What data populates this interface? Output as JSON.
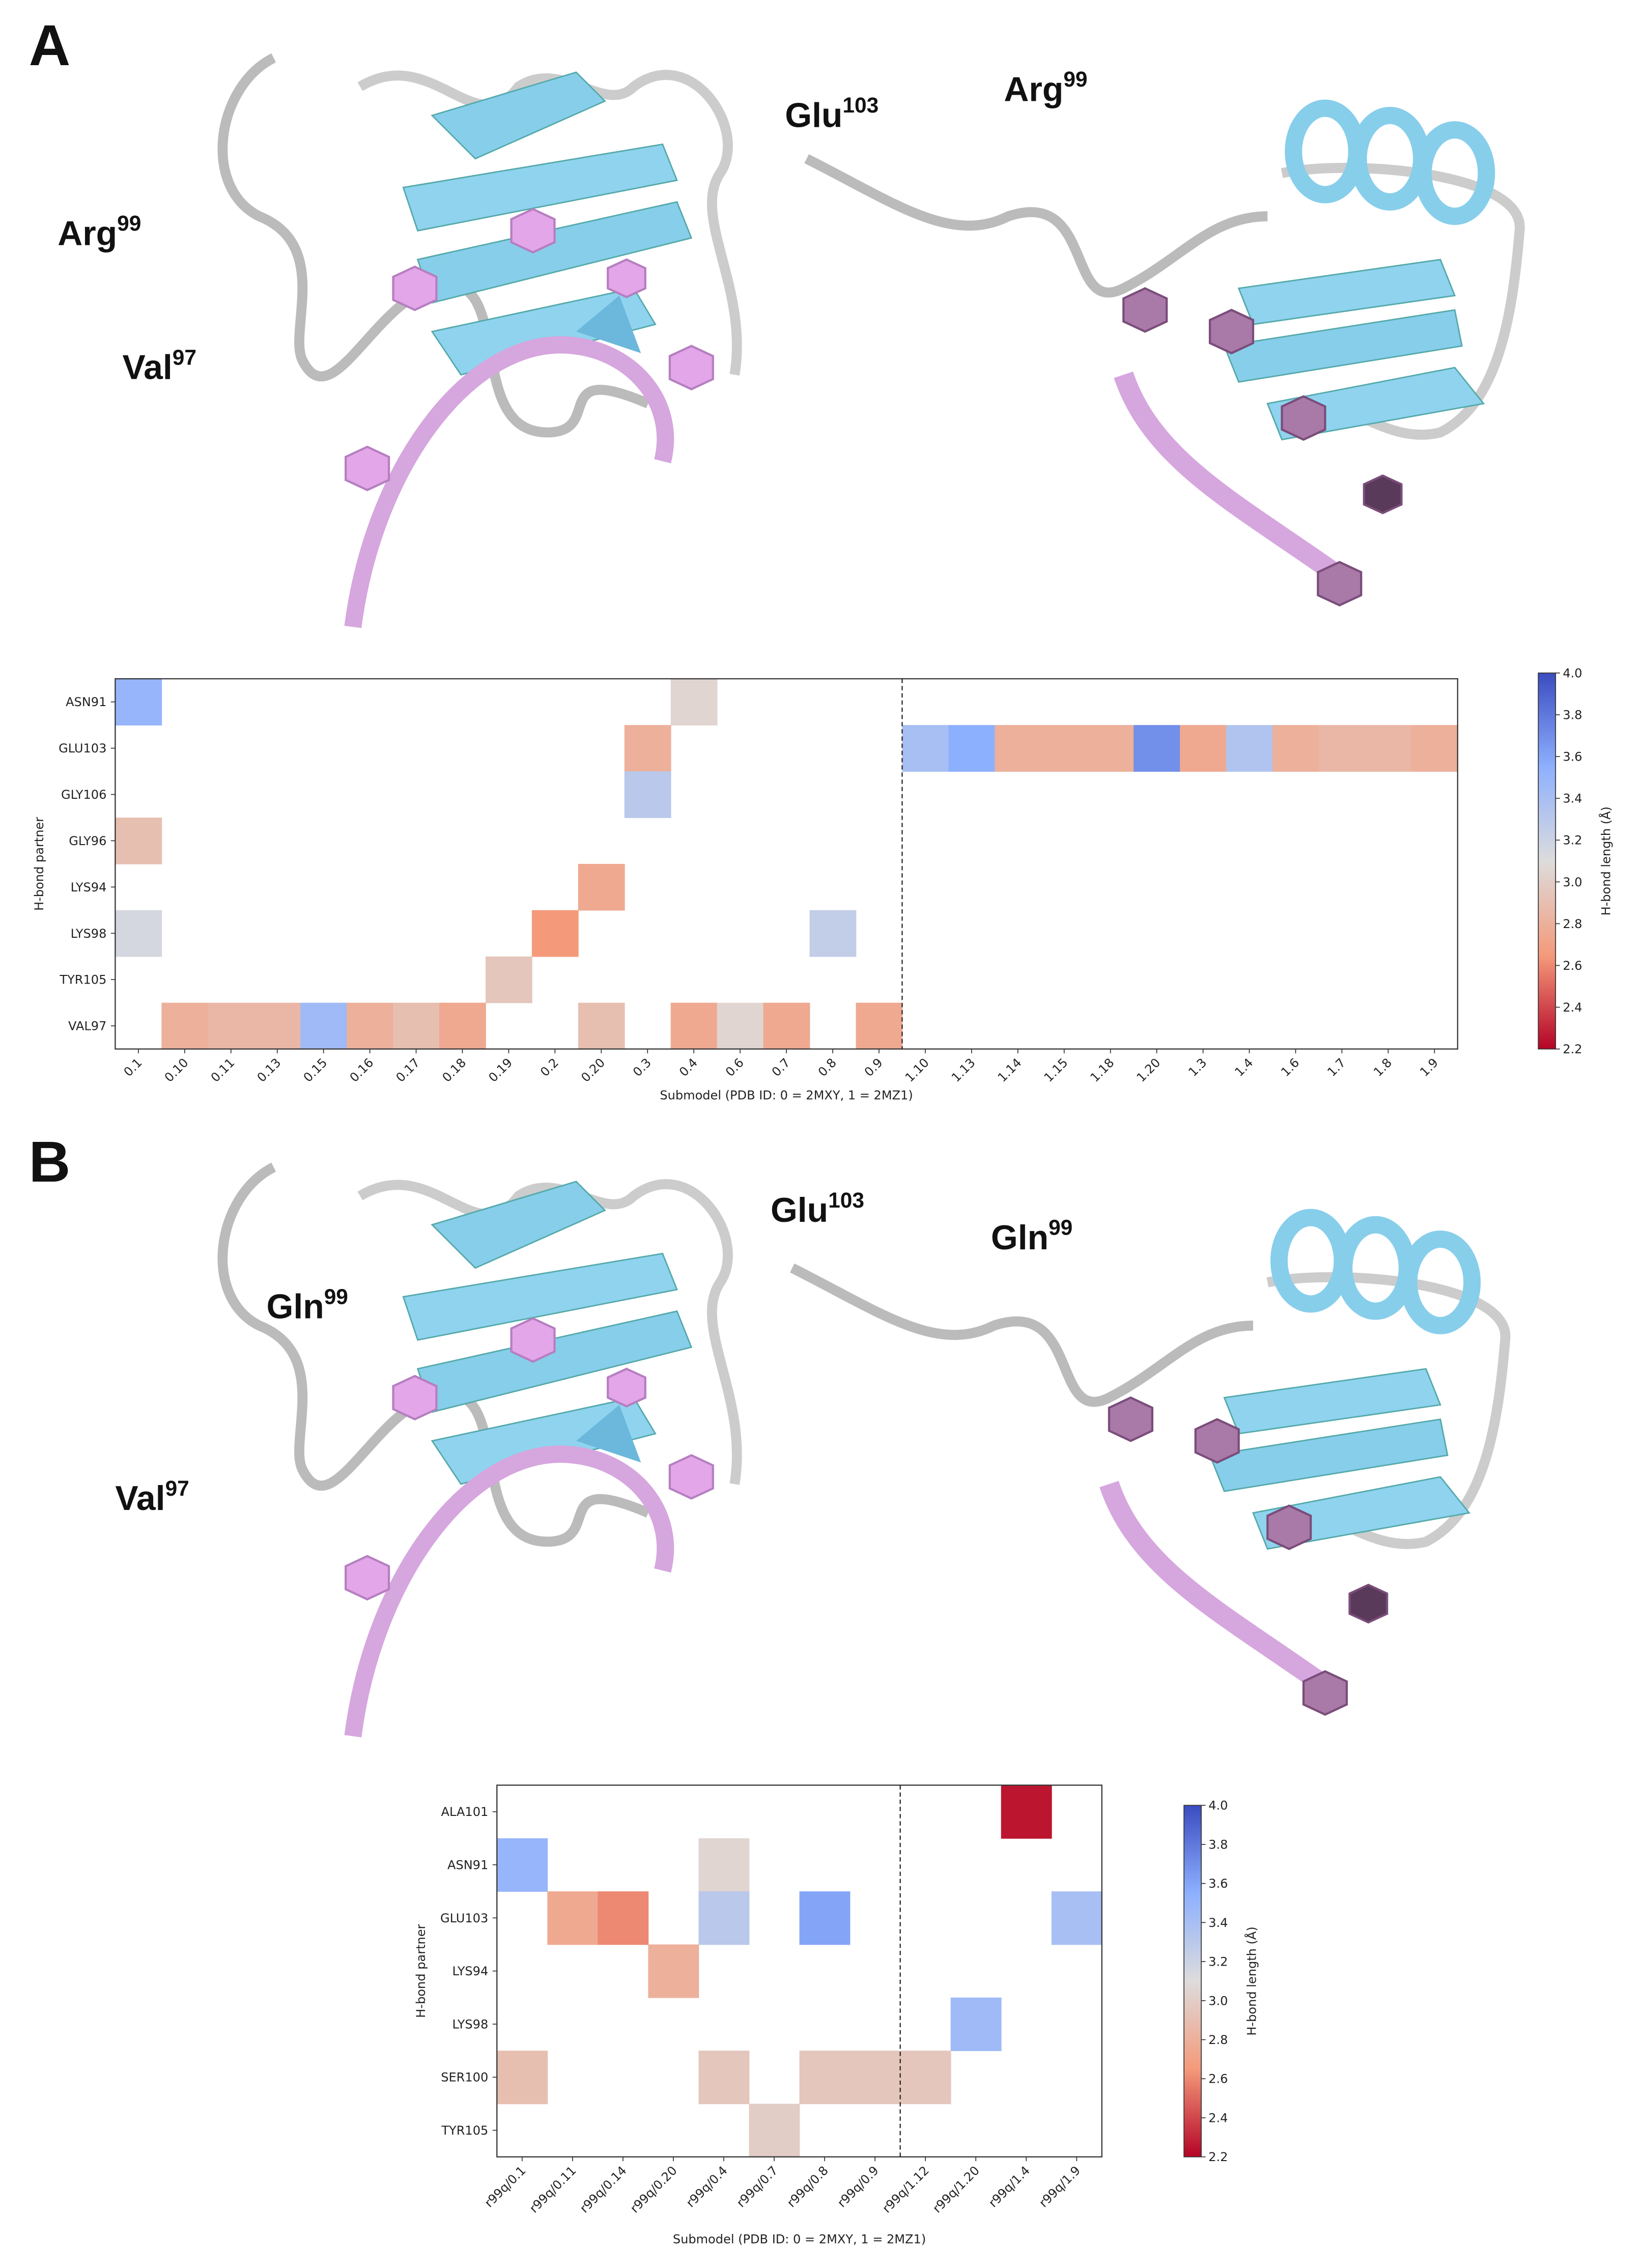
{
  "panels": [
    {
      "letter": "A",
      "labels": [
        {
          "text": "Arg",
          "sup": "99"
        },
        {
          "text": "Val",
          "sup": "97"
        },
        {
          "text": "Glu",
          "sup": "103"
        },
        {
          "text": "Arg",
          "sup": "99"
        }
      ]
    },
    {
      "letter": "B",
      "labels": [
        {
          "text": "Gln",
          "sup": "99"
        },
        {
          "text": "Val",
          "sup": "97"
        },
        {
          "text": "Glu",
          "sup": "103"
        },
        {
          "text": "Gln",
          "sup": "99"
        }
      ]
    }
  ],
  "chart_data": [
    {
      "type": "heatmap",
      "x_label": "Submodel (PDB ID: 0 = 2MXY, 1 = 2MZ1)",
      "y_label": "H-bond partner",
      "x_categories": [
        "0.1",
        "0.10",
        "0.11",
        "0.13",
        "0.15",
        "0.16",
        "0.17",
        "0.18",
        "0.19",
        "0.2",
        "0.20",
        "0.3",
        "0.4",
        "0.6",
        "0.7",
        "0.8",
        "0.9",
        "1.10",
        "1.13",
        "1.14",
        "1.15",
        "1.18",
        "1.20",
        "1.3",
        "1.4",
        "1.6",
        "1.7",
        "1.8",
        "1.9"
      ],
      "y_categories": [
        "ASN91",
        "GLU103",
        "GLY106",
        "GLY96",
        "LYS94",
        "LYS98",
        "TYR105",
        "VAL97"
      ],
      "values": [
        [
          3.5,
          null,
          null,
          null,
          null,
          null,
          null,
          null,
          null,
          null,
          null,
          null,
          3.05,
          null,
          null,
          null,
          null,
          null,
          null,
          null,
          null,
          null,
          null,
          null,
          null,
          null,
          null,
          null,
          null
        ],
        [
          null,
          null,
          null,
          null,
          null,
          null,
          null,
          null,
          null,
          null,
          null,
          2.8,
          null,
          null,
          null,
          null,
          null,
          3.4,
          3.55,
          2.8,
          2.8,
          2.8,
          3.7,
          2.75,
          3.35,
          2.8,
          2.85,
          2.85,
          2.8
        ],
        [
          null,
          null,
          null,
          null,
          null,
          null,
          null,
          null,
          null,
          null,
          null,
          3.3,
          null,
          null,
          null,
          null,
          null,
          null,
          null,
          null,
          null,
          null,
          null,
          null,
          null,
          null,
          null,
          null,
          null
        ],
        [
          2.9,
          null,
          null,
          null,
          null,
          null,
          null,
          null,
          null,
          null,
          null,
          null,
          null,
          null,
          null,
          null,
          null,
          null,
          null,
          null,
          null,
          null,
          null,
          null,
          null,
          null,
          null,
          null,
          null
        ],
        [
          null,
          null,
          null,
          null,
          null,
          null,
          null,
          null,
          null,
          null,
          2.75,
          null,
          null,
          null,
          null,
          null,
          null,
          null,
          null,
          null,
          null,
          null,
          null,
          null,
          null,
          null,
          null,
          null,
          null
        ],
        [
          3.15,
          null,
          null,
          null,
          null,
          null,
          null,
          null,
          null,
          2.65,
          null,
          null,
          null,
          null,
          null,
          3.25,
          null,
          null,
          null,
          null,
          null,
          null,
          null,
          null,
          null,
          null,
          null,
          null,
          null
        ],
        [
          null,
          null,
          null,
          null,
          null,
          null,
          null,
          null,
          2.95,
          null,
          null,
          null,
          null,
          null,
          null,
          null,
          null,
          null,
          null,
          null,
          null,
          null,
          null,
          null,
          null,
          null,
          null,
          null,
          null
        ],
        [
          null,
          2.8,
          2.85,
          2.85,
          3.45,
          2.8,
          2.9,
          2.75,
          null,
          null,
          2.9,
          null,
          2.75,
          3.05,
          2.75,
          null,
          2.75,
          null,
          null,
          null,
          null,
          null,
          null,
          null,
          null,
          null,
          null,
          null,
          null
        ]
      ],
      "clim": [
        2.2,
        4.0
      ],
      "colorbar_label": "H-bond length (Å)",
      "colorbar_ticks": [
        2.2,
        2.4,
        2.6,
        2.8,
        {
          "value": 3,
          "label": "3.0"
        },
        3.2,
        3.4,
        3.6,
        3.8,
        {
          "value": 4,
          "label": "4.0"
        }
      ]
    },
    {
      "type": "heatmap",
      "x_label": "Submodel (PDB ID: 0 = 2MXY, 1 = 2MZ1)",
      "y_label": "H-bond partner",
      "x_categories": [
        "r99q/0.1",
        "r99q/0.11",
        "r99q/0.14",
        "r99q/0.20",
        "r99q/0.4",
        "r99q/0.7",
        "r99q/0.8",
        "r99q/0.9",
        "r99q/1.12",
        "r99q/1.20",
        "r99q/1.4",
        "r99q/1.9"
      ],
      "y_categories": [
        "ALA101",
        "ASN91",
        "GLU103",
        "LYS94",
        "LYS98",
        "SER100",
        "TYR105"
      ],
      "values": [
        [
          null,
          null,
          null,
          null,
          null,
          null,
          null,
          null,
          null,
          null,
          2.25,
          null
        ],
        [
          3.5,
          null,
          null,
          null,
          3.05,
          null,
          null,
          null,
          null,
          null,
          null,
          null
        ],
        [
          null,
          2.75,
          2.6,
          null,
          3.3,
          null,
          3.6,
          null,
          null,
          null,
          null,
          3.4
        ],
        [
          null,
          null,
          null,
          2.8,
          null,
          null,
          null,
          null,
          null,
          null,
          null,
          null
        ],
        [
          null,
          null,
          null,
          null,
          null,
          null,
          null,
          null,
          null,
          3.45,
          null,
          null
        ],
        [
          2.9,
          null,
          null,
          null,
          2.95,
          null,
          2.95,
          2.95,
          2.95,
          null,
          null,
          null
        ],
        [
          null,
          null,
          null,
          null,
          null,
          3.0,
          null,
          null,
          null,
          null,
          null,
          null
        ]
      ],
      "clim": [
        2.2,
        4.0
      ],
      "colorbar_label": "H-bond length (Å)",
      "colorbar_ticks": [
        2.2,
        2.4,
        2.6,
        2.8,
        {
          "value": 3,
          "label": "3.0"
        },
        3.2,
        3.4,
        3.6,
        3.8,
        {
          "value": 4,
          "label": "4.0"
        }
      ]
    }
  ]
}
